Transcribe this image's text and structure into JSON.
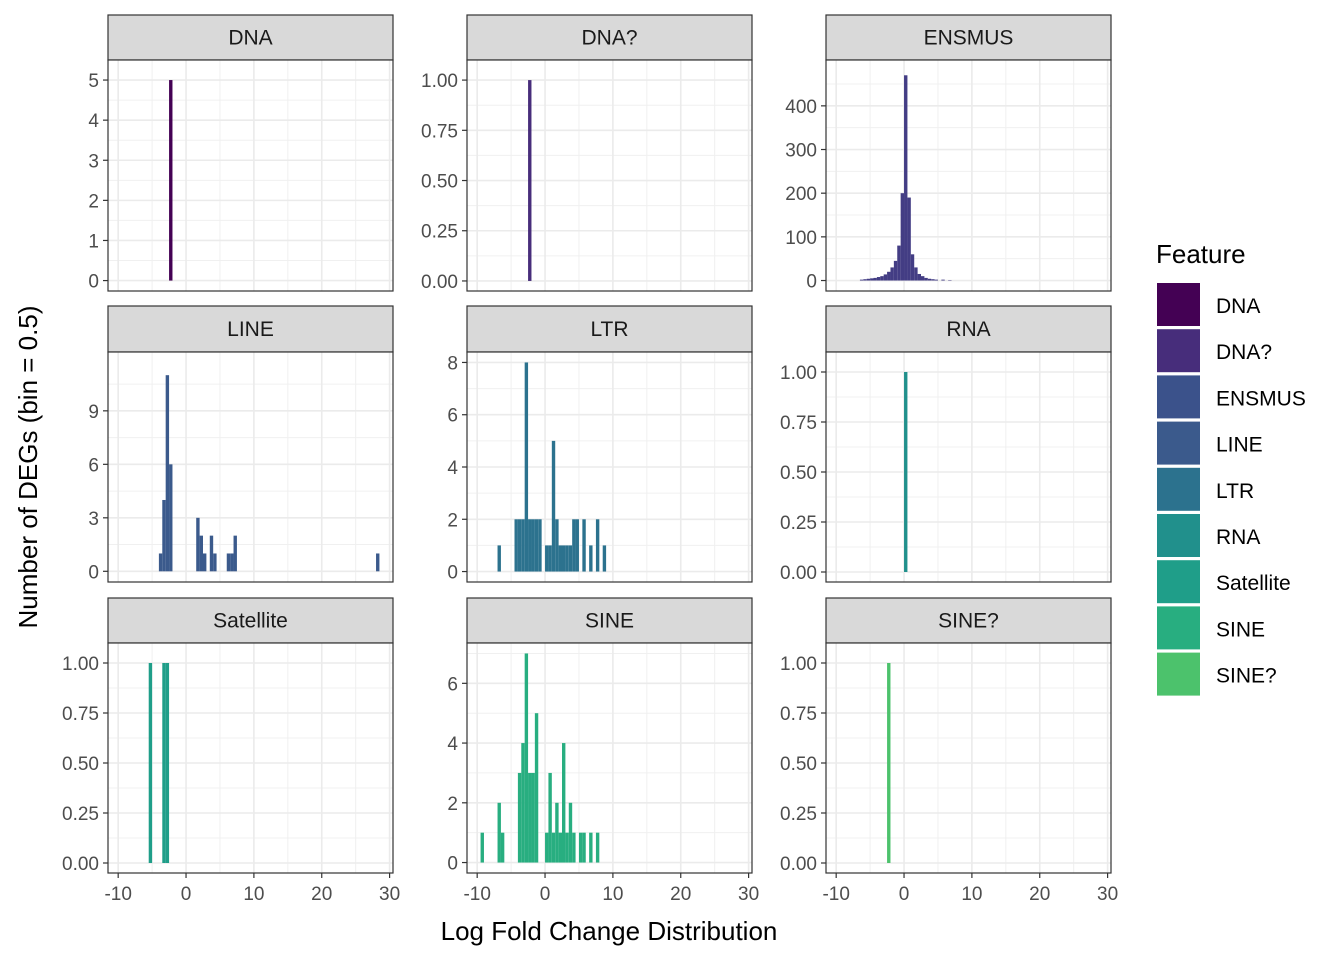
{
  "chart_data": {
    "type": "bar",
    "title": "",
    "xlabel": "Log Fold Change Distribution",
    "ylabel": "Number of DEGs (bin = 0.5)",
    "xlim": [
      -11.5,
      30.5
    ],
    "x_ticks": [
      -10,
      0,
      10,
      20,
      30
    ],
    "x_tick_labels": [
      "-10",
      "0",
      "10",
      "20",
      "30"
    ],
    "bin_width": 0.5,
    "legend": {
      "title": "Feature",
      "position": "right",
      "items": [
        {
          "label": "DNA",
          "color": "#440154"
        },
        {
          "label": "DNA?",
          "color": "#472D7B"
        },
        {
          "label": "ENSMUS",
          "color": "#3B528B"
        },
        {
          "label": "LINE",
          "color": "#3B5A8C"
        },
        {
          "label": "LTR",
          "color": "#2C728E"
        },
        {
          "label": "RNA",
          "color": "#21908C"
        },
        {
          "label": "Satellite",
          "color": "#1F9E89"
        },
        {
          "label": "SINE",
          "color": "#28AE80"
        },
        {
          "label": "SINE?",
          "color": "#4CC26C"
        }
      ]
    },
    "panels": [
      {
        "label": "DNA",
        "color": "#440154",
        "ylim": [
          -0.26,
          5.5
        ],
        "y_ticks": [
          0,
          1,
          2,
          3,
          4,
          5
        ],
        "y_tick_labels": [
          "0",
          "1",
          "2",
          "3",
          "4",
          "5"
        ],
        "bins": [
          [
            -2.25,
            5
          ]
        ]
      },
      {
        "label": "DNA?",
        "color": "#472D7B",
        "ylim": [
          -0.05,
          1.1
        ],
        "y_ticks": [
          0,
          0.25,
          0.5,
          0.75,
          1
        ],
        "y_tick_labels": [
          "0.00",
          "0.25",
          "0.50",
          "0.75",
          "1.00"
        ],
        "bins": [
          [
            -2.25,
            1
          ]
        ]
      },
      {
        "label": "ENSMUS",
        "color": "#433D84",
        "ylim": [
          -24,
          505
        ],
        "y_ticks": [
          0,
          100,
          200,
          300,
          400
        ],
        "y_tick_labels": [
          "0",
          "100",
          "200",
          "300",
          "400"
        ],
        "bins": [
          [
            -6.25,
            2
          ],
          [
            -5.75,
            3
          ],
          [
            -5.25,
            4
          ],
          [
            -4.75,
            5
          ],
          [
            -4.25,
            6
          ],
          [
            -3.75,
            8
          ],
          [
            -3.25,
            10
          ],
          [
            -2.75,
            14
          ],
          [
            -2.25,
            20
          ],
          [
            -1.75,
            30
          ],
          [
            -1.25,
            45
          ],
          [
            -0.75,
            80
          ],
          [
            -0.25,
            200
          ],
          [
            0.25,
            470
          ],
          [
            0.75,
            190
          ],
          [
            1.25,
            60
          ],
          [
            1.75,
            30
          ],
          [
            2.25,
            15
          ],
          [
            2.75,
            10
          ],
          [
            3.25,
            6
          ],
          [
            3.75,
            4
          ],
          [
            4.25,
            3
          ],
          [
            4.75,
            2
          ],
          [
            5.75,
            2
          ],
          [
            6.75,
            1
          ]
        ]
      },
      {
        "label": "LINE",
        "color": "#3B5A8C",
        "ylim": [
          -0.6,
          12.3
        ],
        "y_ticks": [
          0,
          3,
          6,
          9
        ],
        "y_tick_labels": [
          "0",
          "3",
          "6",
          "9"
        ],
        "bins": [
          [
            -3.75,
            1
          ],
          [
            -3.25,
            4
          ],
          [
            -2.75,
            11
          ],
          [
            -2.25,
            6
          ],
          [
            1.75,
            3
          ],
          [
            2.25,
            2
          ],
          [
            2.75,
            1
          ],
          [
            3.75,
            2
          ],
          [
            4.25,
            1
          ],
          [
            6.25,
            1
          ],
          [
            6.75,
            1
          ],
          [
            7.25,
            2
          ],
          [
            28.25,
            1
          ]
        ]
      },
      {
        "label": "LTR",
        "color": "#2C728E",
        "ylim": [
          -0.4,
          8.4
        ],
        "y_ticks": [
          0,
          2,
          4,
          6,
          8
        ],
        "y_tick_labels": [
          "0",
          "2",
          "4",
          "6",
          "8"
        ],
        "bins": [
          [
            -6.75,
            1
          ],
          [
            -4.25,
            2
          ],
          [
            -3.75,
            2
          ],
          [
            -3.25,
            2
          ],
          [
            -2.75,
            8
          ],
          [
            -2.25,
            2
          ],
          [
            -1.75,
            2
          ],
          [
            -1.25,
            2
          ],
          [
            -0.75,
            2
          ],
          [
            0.25,
            1
          ],
          [
            0.75,
            1
          ],
          [
            1.25,
            5
          ],
          [
            1.75,
            2
          ],
          [
            2.25,
            1
          ],
          [
            2.75,
            1
          ],
          [
            3.25,
            1
          ],
          [
            3.75,
            1
          ],
          [
            4.25,
            2
          ],
          [
            4.75,
            2
          ],
          [
            5.75,
            2
          ],
          [
            6.75,
            1
          ],
          [
            7.75,
            2
          ],
          [
            8.75,
            1
          ]
        ]
      },
      {
        "label": "RNA",
        "color": "#21908C",
        "ylim": [
          -0.05,
          1.1
        ],
        "y_ticks": [
          0,
          0.25,
          0.5,
          0.75,
          1
        ],
        "y_tick_labels": [
          "0.00",
          "0.25",
          "0.50",
          "0.75",
          "1.00"
        ],
        "bins": [
          [
            0.25,
            1
          ]
        ]
      },
      {
        "label": "Satellite",
        "color": "#1F9E89",
        "ylim": [
          -0.05,
          1.1
        ],
        "y_ticks": [
          0,
          0.25,
          0.5,
          0.75,
          1
        ],
        "y_tick_labels": [
          "0.00",
          "0.25",
          "0.50",
          "0.75",
          "1.00"
        ],
        "bins": [
          [
            -5.25,
            1
          ],
          [
            -3.25,
            1
          ],
          [
            -2.75,
            1
          ]
        ]
      },
      {
        "label": "SINE",
        "color": "#28AE80",
        "ylim": [
          -0.35,
          7.35
        ],
        "y_ticks": [
          0,
          2,
          4,
          6
        ],
        "y_tick_labels": [
          "0",
          "2",
          "4",
          "6"
        ],
        "bins": [
          [
            -9.25,
            1
          ],
          [
            -6.75,
            2
          ],
          [
            -6.25,
            1
          ],
          [
            -3.75,
            3
          ],
          [
            -3.25,
            4
          ],
          [
            -2.75,
            7
          ],
          [
            -2.25,
            3
          ],
          [
            -1.75,
            3
          ],
          [
            -1.25,
            5
          ],
          [
            0.25,
            1
          ],
          [
            0.75,
            3
          ],
          [
            1.25,
            1
          ],
          [
            1.75,
            2
          ],
          [
            2.25,
            1
          ],
          [
            2.75,
            4
          ],
          [
            3.25,
            1
          ],
          [
            3.75,
            2
          ],
          [
            4.25,
            1
          ],
          [
            5.25,
            1
          ],
          [
            5.75,
            1
          ],
          [
            6.75,
            1
          ],
          [
            7.75,
            1
          ]
        ]
      },
      {
        "label": "SINE?",
        "color": "#4CC26C",
        "ylim": [
          -0.05,
          1.1
        ],
        "y_ticks": [
          0,
          0.25,
          0.5,
          0.75,
          1
        ],
        "y_tick_labels": [
          "0.00",
          "0.25",
          "0.50",
          "0.75",
          "1.00"
        ],
        "bins": [
          [
            -2.25,
            1
          ]
        ]
      }
    ]
  }
}
